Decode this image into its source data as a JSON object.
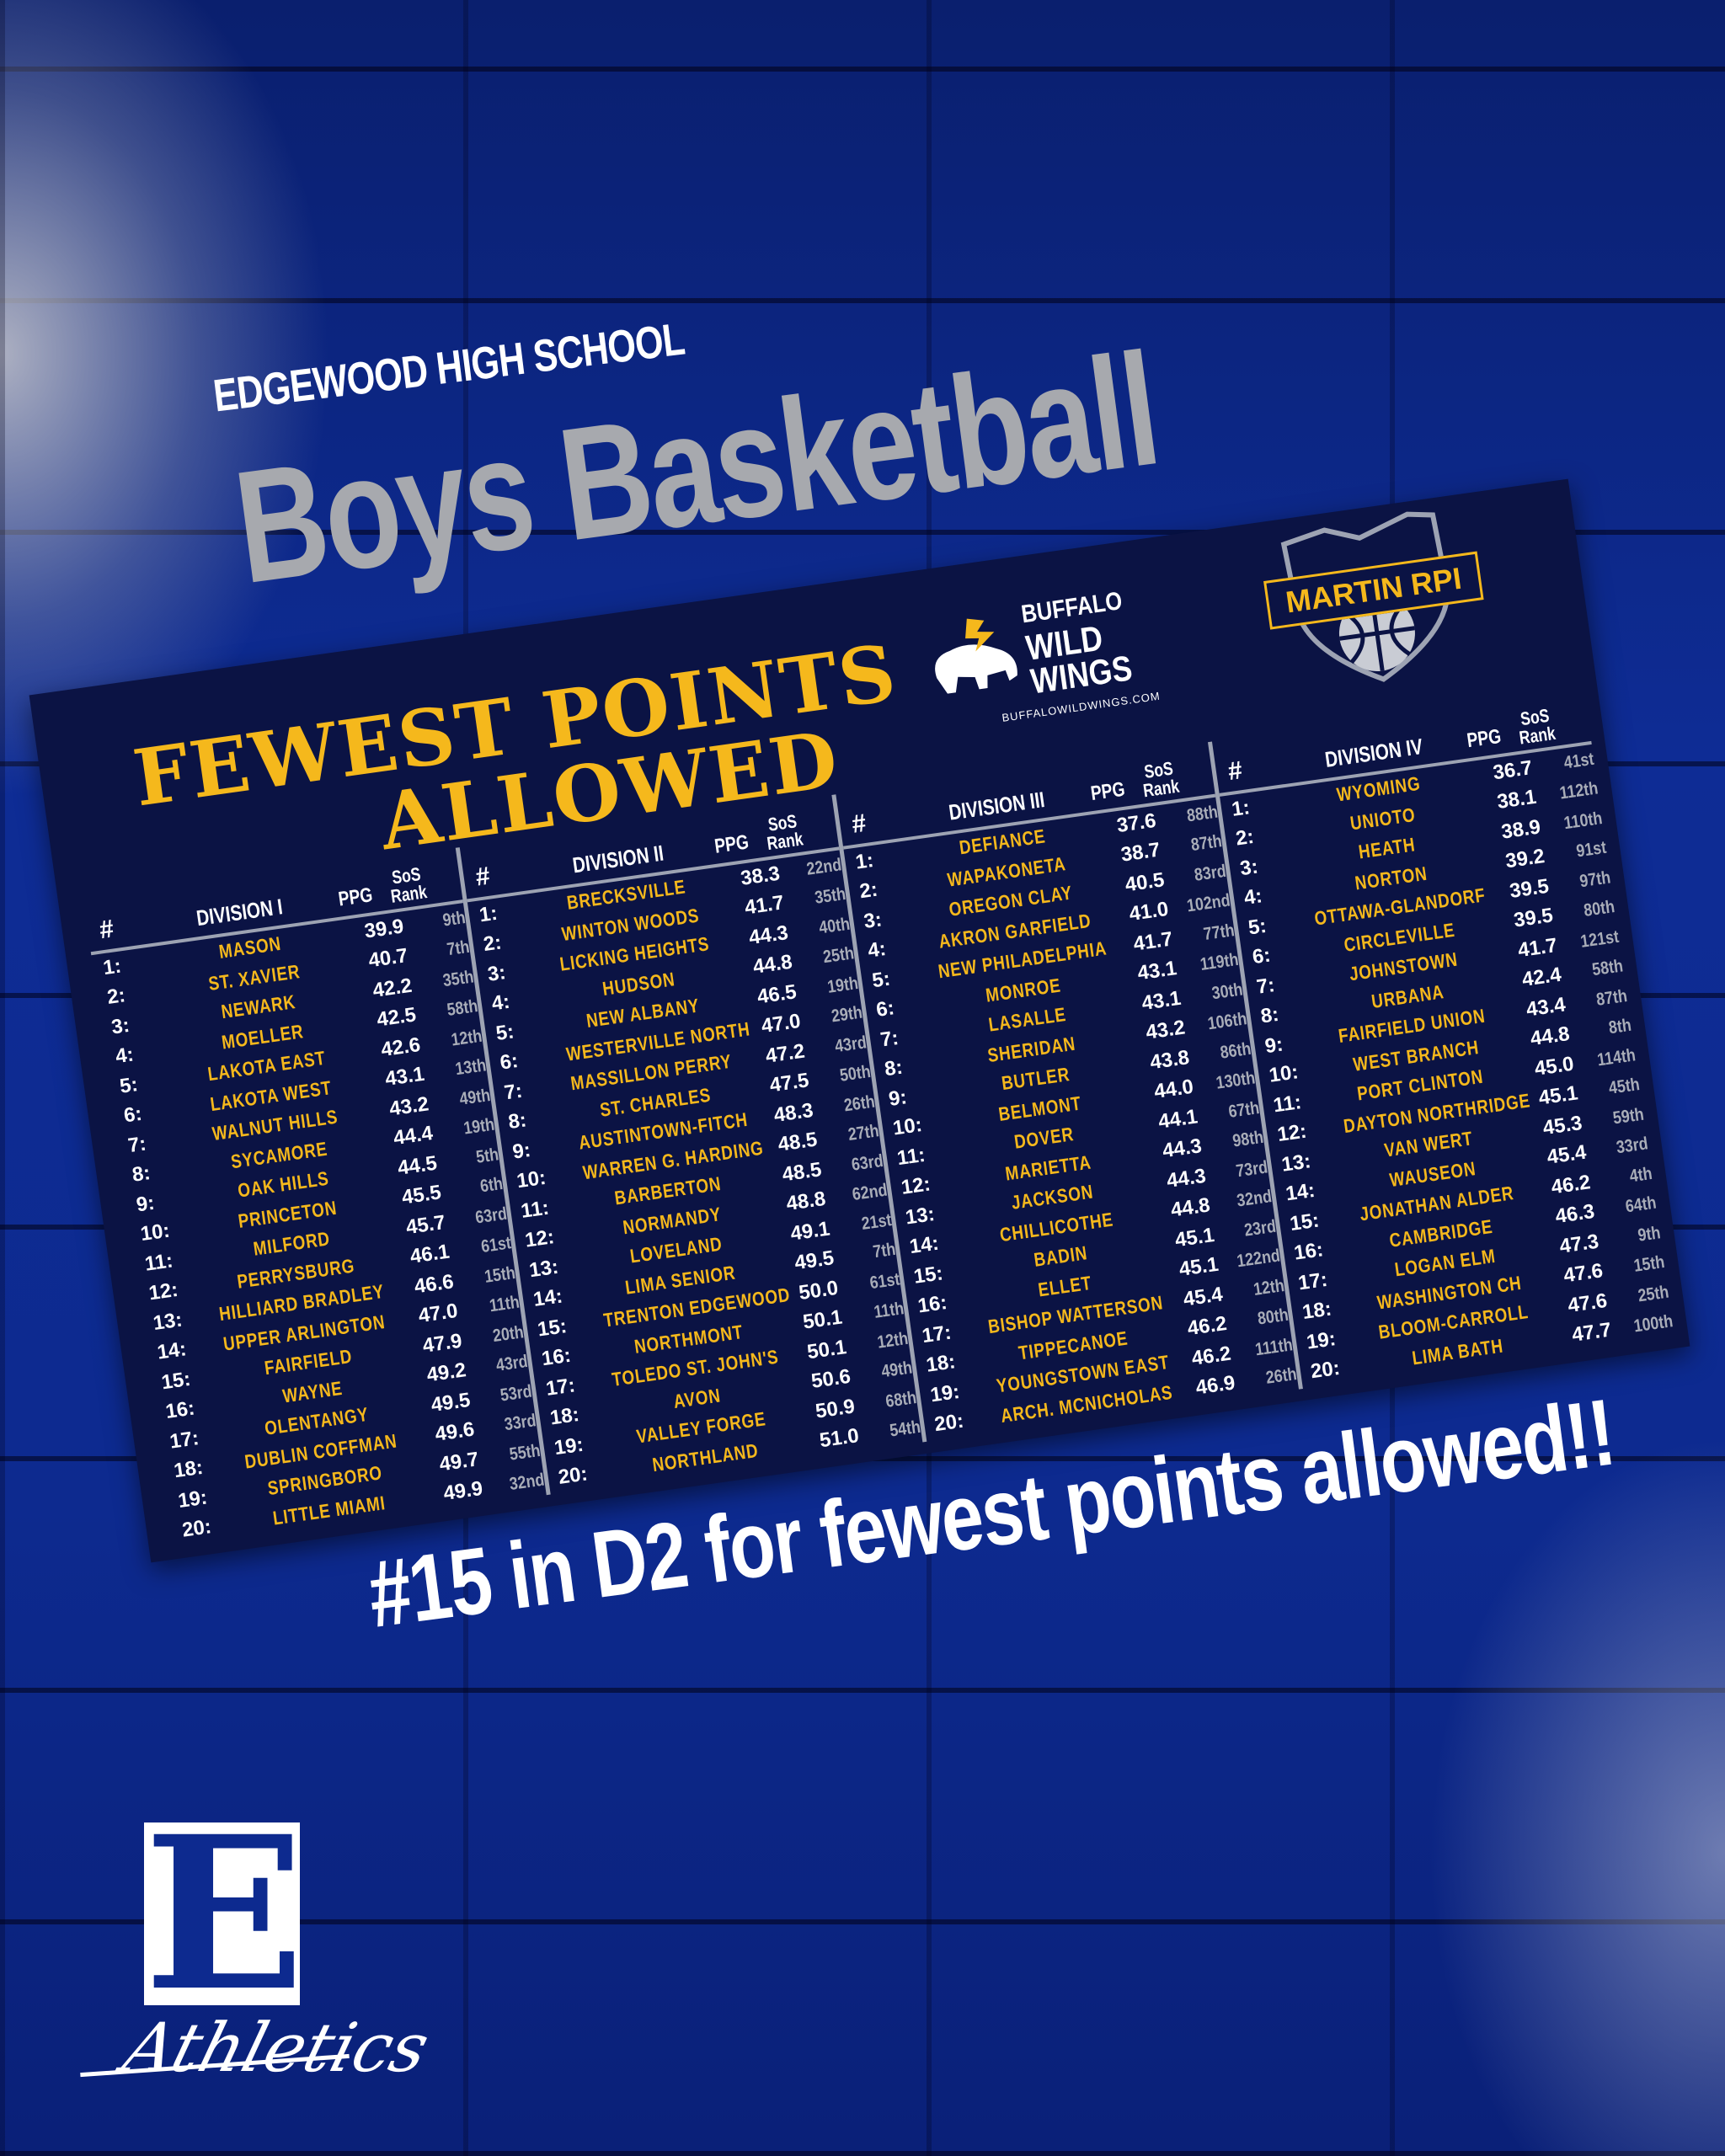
{
  "header": {
    "school": "EDGEWOOD HIGH SCHOOL",
    "sport": "Boys Basketball"
  },
  "board": {
    "title_line1": "FEWEST POINTS",
    "title_line2": "ALLOWED",
    "sponsor": {
      "line1": "BUFFALO",
      "line2": "WILD",
      "line3": "WINGS",
      "url": "BUFFALOWILDWINGS.COM"
    },
    "rpi_logo": "MARTIN RPI",
    "columns": {
      "num": "#",
      "ppg": "PPG",
      "sos_line1": "SoS",
      "sos_line2": "Rank"
    },
    "divisions": [
      {
        "name": "DIVISION I",
        "rows": [
          [
            "MASON",
            "39.9",
            "9th"
          ],
          [
            "ST. XAVIER",
            "40.7",
            "7th"
          ],
          [
            "NEWARK",
            "42.2",
            "35th"
          ],
          [
            "MOELLER",
            "42.5",
            "58th"
          ],
          [
            "LAKOTA EAST",
            "42.6",
            "12th"
          ],
          [
            "LAKOTA WEST",
            "43.1",
            "13th"
          ],
          [
            "WALNUT HILLS",
            "43.2",
            "49th"
          ],
          [
            "SYCAMORE",
            "44.4",
            "19th"
          ],
          [
            "OAK HILLS",
            "44.5",
            "5th"
          ],
          [
            "PRINCETON",
            "45.5",
            "6th"
          ],
          [
            "MILFORD",
            "45.7",
            "63rd"
          ],
          [
            "PERRYSBURG",
            "46.1",
            "61st"
          ],
          [
            "HILLIARD BRADLEY",
            "46.6",
            "15th"
          ],
          [
            "UPPER ARLINGTON",
            "47.0",
            "11th"
          ],
          [
            "FAIRFIELD",
            "47.9",
            "20th"
          ],
          [
            "WAYNE",
            "49.2",
            "43rd"
          ],
          [
            "OLENTANGY",
            "49.5",
            "53rd"
          ],
          [
            "DUBLIN COFFMAN",
            "49.6",
            "33rd"
          ],
          [
            "SPRINGBORO",
            "49.7",
            "55th"
          ],
          [
            "LITTLE MIAMI",
            "49.9",
            "32nd"
          ]
        ]
      },
      {
        "name": "DIVISION II",
        "rows": [
          [
            "BRECKSVILLE",
            "38.3",
            "22nd"
          ],
          [
            "WINTON WOODS",
            "41.7",
            "35th"
          ],
          [
            "LICKING HEIGHTS",
            "44.3",
            "40th"
          ],
          [
            "HUDSON",
            "44.8",
            "25th"
          ],
          [
            "NEW ALBANY",
            "46.5",
            "19th"
          ],
          [
            "WESTERVILLE NORTH",
            "47.0",
            "29th"
          ],
          [
            "MASSILLON PERRY",
            "47.2",
            "43rd"
          ],
          [
            "ST. CHARLES",
            "47.5",
            "50th"
          ],
          [
            "AUSTINTOWN-FITCH",
            "48.3",
            "26th"
          ],
          [
            "WARREN G. HARDING",
            "48.5",
            "27th"
          ],
          [
            "BARBERTON",
            "48.5",
            "63rd"
          ],
          [
            "NORMANDY",
            "48.8",
            "62nd"
          ],
          [
            "LOVELAND",
            "49.1",
            "21st"
          ],
          [
            "LIMA SENIOR",
            "49.5",
            "7th"
          ],
          [
            "TRENTON EDGEWOOD",
            "50.0",
            "61st"
          ],
          [
            "NORTHMONT",
            "50.1",
            "11th"
          ],
          [
            "TOLEDO ST. JOHN'S",
            "50.1",
            "12th"
          ],
          [
            "AVON",
            "50.6",
            "49th"
          ],
          [
            "VALLEY FORGE",
            "50.9",
            "68th"
          ],
          [
            "NORTHLAND",
            "51.0",
            "54th"
          ]
        ]
      },
      {
        "name": "DIVISION III",
        "rows": [
          [
            "DEFIANCE",
            "37.6",
            "88th"
          ],
          [
            "WAPAKONETA",
            "38.7",
            "87th"
          ],
          [
            "OREGON CLAY",
            "40.5",
            "83rd"
          ],
          [
            "AKRON GARFIELD",
            "41.0",
            "102nd"
          ],
          [
            "NEW PHILADELPHIA",
            "41.7",
            "77th"
          ],
          [
            "MONROE",
            "43.1",
            "119th"
          ],
          [
            "LASALLE",
            "43.1",
            "30th"
          ],
          [
            "SHERIDAN",
            "43.2",
            "106th"
          ],
          [
            "BUTLER",
            "43.8",
            "86th"
          ],
          [
            "BELMONT",
            "44.0",
            "130th"
          ],
          [
            "DOVER",
            "44.1",
            "67th"
          ],
          [
            "MARIETTA",
            "44.3",
            "98th"
          ],
          [
            "JACKSON",
            "44.3",
            "73rd"
          ],
          [
            "CHILLICOTHE",
            "44.8",
            "32nd"
          ],
          [
            "BADIN",
            "45.1",
            "23rd"
          ],
          [
            "ELLET",
            "45.1",
            "122nd"
          ],
          [
            "BISHOP WATTERSON",
            "45.4",
            "12th"
          ],
          [
            "TIPPECANOE",
            "46.2",
            "80th"
          ],
          [
            "YOUNGSTOWN EAST",
            "46.2",
            "111th"
          ],
          [
            "ARCH. MCNICHOLAS",
            "46.9",
            "26th"
          ]
        ]
      },
      {
        "name": "DIVISION IV",
        "rows": [
          [
            "WYOMING",
            "36.7",
            "41st"
          ],
          [
            "UNIOTO",
            "38.1",
            "112th"
          ],
          [
            "HEATH",
            "38.9",
            "110th"
          ],
          [
            "NORTON",
            "39.2",
            "91st"
          ],
          [
            "OTTAWA-GLANDORF",
            "39.5",
            "97th"
          ],
          [
            "CIRCLEVILLE",
            "39.5",
            "80th"
          ],
          [
            "JOHNSTOWN",
            "41.7",
            "121st"
          ],
          [
            "URBANA",
            "42.4",
            "58th"
          ],
          [
            "FAIRFIELD UNION",
            "43.4",
            "87th"
          ],
          [
            "WEST BRANCH",
            "44.8",
            "8th"
          ],
          [
            "PORT CLINTON",
            "45.0",
            "114th"
          ],
          [
            "DAYTON NORTHRIDGE",
            "45.1",
            "45th"
          ],
          [
            "VAN WERT",
            "45.3",
            "59th"
          ],
          [
            "WAUSEON",
            "45.4",
            "33rd"
          ],
          [
            "JONATHAN ALDER",
            "46.2",
            "4th"
          ],
          [
            "CAMBRIDGE",
            "46.3",
            "64th"
          ],
          [
            "LOGAN ELM",
            "47.3",
            "9th"
          ],
          [
            "WASHINGTON CH",
            "47.6",
            "15th"
          ],
          [
            "BLOOM-CARROLL",
            "47.6",
            "25th"
          ],
          [
            "LIMA BATH",
            "47.7",
            "100th"
          ]
        ]
      }
    ]
  },
  "caption": "#15 in D2 for fewest points allowed!!",
  "logo": {
    "letter": "E",
    "word": "Athletics"
  },
  "colors": {
    "board": "#0b1344",
    "gold": "#f5b81c",
    "background": "#0d2a8f",
    "subtitle_gray": "#a7a9ae"
  }
}
